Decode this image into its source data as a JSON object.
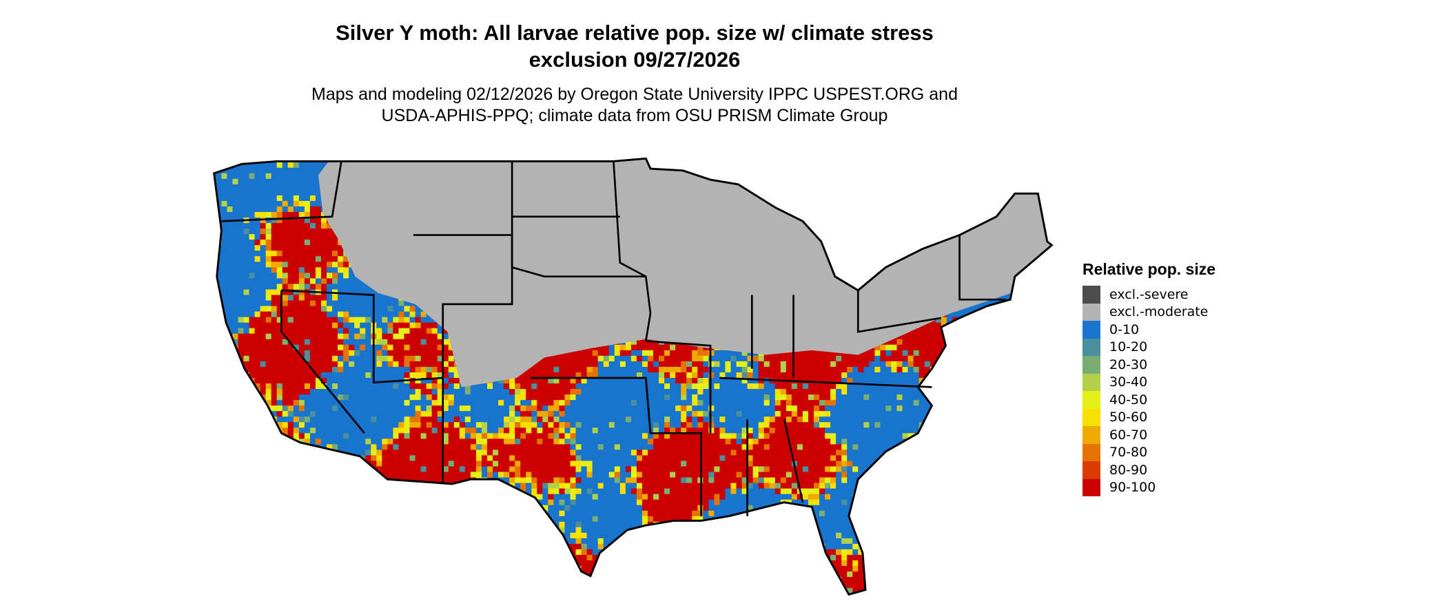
{
  "title": {
    "line1": "Silver Y moth: All larvae relative pop. size w/ climate stress",
    "line2": "exclusion 09/27/2026"
  },
  "subtitle": {
    "line1": "Maps and modeling 02/12/2026 by Oregon State University IPPC USPEST.ORG and",
    "line2": "USDA-APHIS-PPQ; climate data from OSU PRISM Climate Group"
  },
  "legend": {
    "title": "Relative pop. size",
    "items": [
      {
        "label": "excl.-severe",
        "color": "#4d4d4d"
      },
      {
        "label": "excl.-moderate",
        "color": "#b3b3b3"
      },
      {
        "label": "0-10",
        "color": "#1874cd"
      },
      {
        "label": "10-20",
        "color": "#4a8f9e"
      },
      {
        "label": "20-30",
        "color": "#7aad73"
      },
      {
        "label": "30-40",
        "color": "#b2d04a"
      },
      {
        "label": "40-50",
        "color": "#e5ef18"
      },
      {
        "label": "50-60",
        "color": "#f8e000"
      },
      {
        "label": "60-70",
        "color": "#eeaa00"
      },
      {
        "label": "70-80",
        "color": "#e57300"
      },
      {
        "label": "80-90",
        "color": "#db3a00"
      },
      {
        "label": "90-100",
        "color": "#cc0000"
      }
    ]
  }
}
